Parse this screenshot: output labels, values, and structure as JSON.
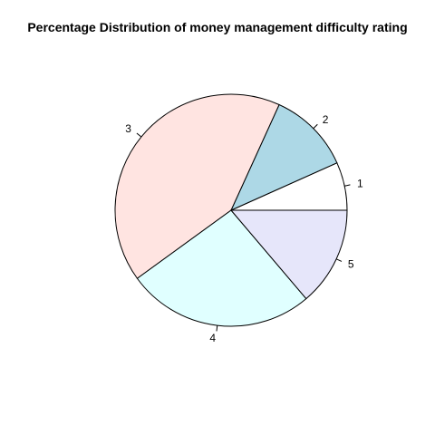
{
  "chart_data": {
    "type": "pie",
    "title": "Percentage Distribution of money management difficulty rating",
    "categories": [
      "1",
      "2",
      "3",
      "4",
      "5"
    ],
    "values": [
      6.7,
      11.5,
      41.8,
      26.2,
      13.8
    ],
    "colors": [
      "#FFFFFF",
      "#ADD8E6",
      "#FFE4E1",
      "#E0FFFF",
      "#E6E6FA"
    ],
    "start_angle_deg": 0,
    "direction": "counterclockwise",
    "border_color": "#000000"
  }
}
